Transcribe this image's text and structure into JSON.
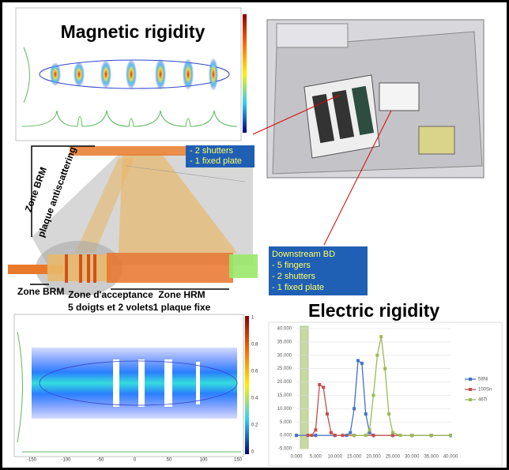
{
  "top_plot": {
    "title": "Magnetic rigidity"
  },
  "diagram": {
    "brm_zone_top": "Zone BRM",
    "antiscatter": "plaque antiscattering",
    "brm_zone": "Zone BRM",
    "acceptance": [
      "Zone d'acceptance",
      "5 doigts et 2 volets"
    ],
    "hrm": [
      "Zone HRM",
      "1 plaque fixe"
    ],
    "upstream_box": [
      "- 2 shutters",
      "- 1 fixed plate"
    ]
  },
  "downstream_box": [
    "Downstream BD",
    "- 5 fingers",
    "- 2 shutters",
    "- 1 fixed plate"
  ],
  "bottom_plot": {
    "xticks": [
      "-150",
      "-100",
      "-50",
      "0",
      "50",
      "100",
      "150"
    ],
    "colorbar": [
      "1",
      "0.8",
      "0.6",
      "0.4",
      "0.2",
      "0"
    ]
  },
  "chart_data": {
    "type": "line",
    "title": "Electric rigidity",
    "xlim": [
      0,
      40
    ],
    "ylim": [
      -5,
      40
    ],
    "xticks": [
      {
        "value": 0,
        "label": "0.000"
      },
      {
        "value": 5,
        "label": "5.000"
      },
      {
        "value": 10,
        "label": "10.000"
      },
      {
        "value": 15,
        "label": "15.000"
      },
      {
        "value": 20,
        "label": "20.000"
      },
      {
        "value": 25,
        "label": "25.000"
      },
      {
        "value": 30,
        "label": "30.000"
      },
      {
        "value": 35,
        "label": "35.000"
      },
      {
        "value": 40,
        "label": "40.000"
      }
    ],
    "yticks": [
      {
        "value": 40,
        "label": "40.000"
      },
      {
        "value": 35,
        "label": "35.000"
      },
      {
        "value": 30,
        "label": "30.000"
      },
      {
        "value": 25,
        "label": "25.000"
      },
      {
        "value": 20,
        "label": "20.000"
      },
      {
        "value": 15,
        "label": "15.000"
      },
      {
        "value": 10,
        "label": "10.000"
      },
      {
        "value": 5,
        "label": "5.000"
      },
      {
        "value": 0,
        "label": "0.000"
      },
      {
        "value": -5,
        "label": "-5.000"
      }
    ],
    "grid": true,
    "series": [
      {
        "name": "58Ni",
        "color": "#4472c4",
        "x": [
          0,
          5,
          10,
          13,
          14,
          15,
          16,
          17,
          18,
          19,
          20,
          25,
          30,
          35,
          40
        ],
        "values": [
          0,
          0,
          0,
          0,
          1,
          10,
          28,
          27,
          8,
          1,
          0,
          0,
          0,
          0,
          0
        ]
      },
      {
        "name": "100Sn",
        "color": "#c0504d",
        "x": [
          3,
          4,
          5,
          6,
          7,
          8,
          9,
          10,
          12,
          15,
          20,
          25,
          30,
          35,
          40
        ],
        "values": [
          0,
          0,
          2,
          19,
          18,
          8,
          1,
          0,
          0,
          0,
          0,
          0,
          0,
          0,
          0
        ]
      },
      {
        "name": "46Ti",
        "color": "#9bbb59",
        "x": [
          15,
          18,
          19,
          20,
          21,
          22,
          23,
          24,
          25,
          27,
          30,
          35,
          40
        ],
        "values": [
          0,
          0,
          2,
          15,
          30,
          37,
          25,
          8,
          1,
          0,
          0,
          0,
          0
        ]
      }
    ]
  }
}
